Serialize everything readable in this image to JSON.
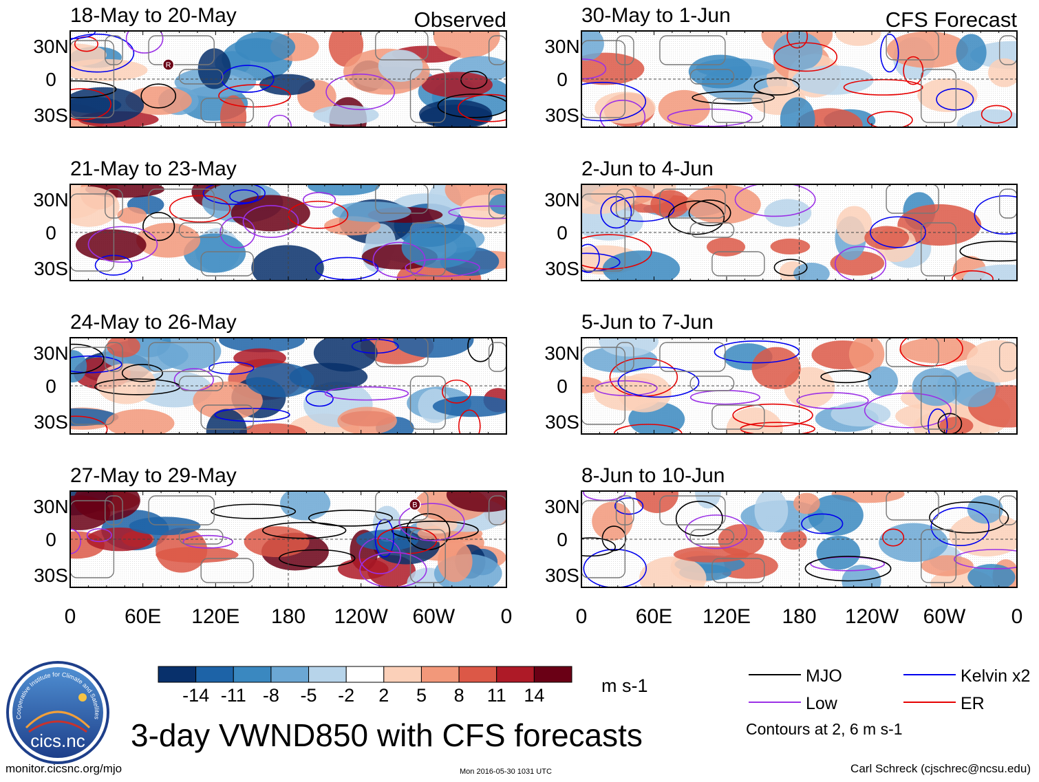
{
  "title": "3-day VWND850 with CFS forecasts",
  "footer": {
    "site": "monitor.cicsnc.org/mjo",
    "timestamp": "Mon 2016-05-30 1031 UTC",
    "author": "Carl Schreck (cjschrec@ncsu.edu)"
  },
  "logo": {
    "ring_text": "Cooperative Institute for Climate and Satellites",
    "name": "cics.nc"
  },
  "chart_data": {
    "type": "heatmap",
    "variable": "VWND850",
    "columns": [
      {
        "label": "Observed",
        "panels": [
          "18-May to 20-May",
          "21-May to 23-May",
          "24-May to 26-May",
          "27-May to 29-May"
        ]
      },
      {
        "label": "CFS Forecast",
        "panels": [
          "30-May to 1-Jun",
          "2-Jun to 4-Jun",
          "5-Jun to 7-Jun",
          "8-Jun to 10-Jun"
        ]
      }
    ],
    "xticks": [
      "0",
      "60E",
      "120E",
      "180",
      "120W",
      "60W",
      "0"
    ],
    "yticks": [
      "30N",
      "0",
      "30S"
    ],
    "colorbar": {
      "ticks": [
        "-14",
        "-11",
        "-8",
        "-5",
        "-2",
        "2",
        "5",
        "8",
        "11",
        "14"
      ],
      "colors": [
        "#08306b",
        "#1d63a7",
        "#3a88c0",
        "#6ba7d4",
        "#b7d4ea",
        "#ffffff",
        "#fbd0b9",
        "#f2987a",
        "#dc5847",
        "#ae1a27",
        "#6a0015"
      ],
      "units": "m s-1"
    },
    "legend": [
      {
        "label": "MJO",
        "color": "#000000"
      },
      {
        "label": "Kelvin x2",
        "color": "#0000ee"
      },
      {
        "label": "Low",
        "color": "#9b30e6"
      },
      {
        "label": "ER",
        "color": "#e60000"
      }
    ],
    "note": "Contours at 2, 6 m s-1",
    "storm_labels": [
      {
        "panel": "18-May to 20-May",
        "text": "R"
      },
      {
        "panel": "27-May to 29-May",
        "text": "B"
      }
    ]
  }
}
